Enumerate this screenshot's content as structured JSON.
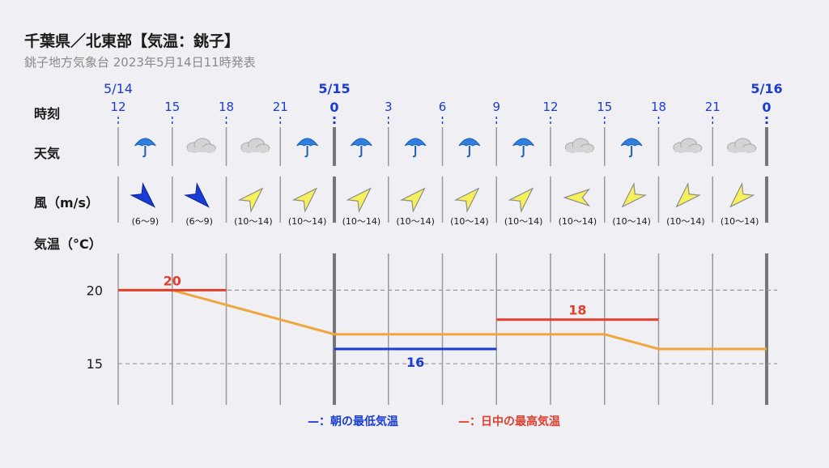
{
  "title": "千葉県／北東部【気温：銚子】",
  "subtitle": "銚子地方気象台 2023年5月14日11時発表",
  "row_labels": {
    "time": "時刻",
    "weather": "天気",
    "wind": "風（m/s）",
    "temp": "気温（°C）"
  },
  "dates": [
    "5/14",
    "5/15",
    "5/16"
  ],
  "hours": [
    "12",
    "15",
    "18",
    "21",
    "0",
    "3",
    "6",
    "9",
    "12",
    "15",
    "18",
    "21",
    "0"
  ],
  "weather": [
    "rain-umbrella-icon",
    "cloud-icon",
    "cloud-icon",
    "rain-umbrella-icon",
    "rain-umbrella-icon",
    "rain-umbrella-icon",
    "rain-umbrella-icon",
    "rain-umbrella-icon",
    "cloud-icon",
    "rain-umbrella-icon",
    "cloud-icon",
    "cloud-icon"
  ],
  "wind": [
    {
      "range": "(6〜9)",
      "dir": "NW",
      "strength": "low"
    },
    {
      "range": "(6〜9)",
      "dir": "NW",
      "strength": "low"
    },
    {
      "range": "(10〜14)",
      "dir": "SW",
      "strength": "mid"
    },
    {
      "range": "(10〜14)",
      "dir": "SW",
      "strength": "mid"
    },
    {
      "range": "(10〜14)",
      "dir": "SW",
      "strength": "mid"
    },
    {
      "range": "(10〜14)",
      "dir": "SW",
      "strength": "mid"
    },
    {
      "range": "(10〜14)",
      "dir": "SW",
      "strength": "mid"
    },
    {
      "range": "(10〜14)",
      "dir": "SW",
      "strength": "mid"
    },
    {
      "range": "(10〜14)",
      "dir": "E",
      "strength": "mid"
    },
    {
      "range": "(10〜14)",
      "dir": "NE",
      "strength": "mid"
    },
    {
      "range": "(10〜14)",
      "dir": "NE",
      "strength": "mid"
    },
    {
      "range": "(10〜14)",
      "dir": "NE",
      "strength": "mid"
    }
  ],
  "legend": {
    "morning": "—：朝の最低気温",
    "daymax": "—：日中の最高気温"
  },
  "colors": {
    "blue": "#1a3cd6",
    "red": "#e0402e",
    "orange": "#f0a63c",
    "wind_low": "#1a3cd6",
    "wind_mid": "#f6f05a"
  },
  "chart_data": {
    "type": "line",
    "x": [
      "12",
      "15",
      "18",
      "21",
      "0",
      "3",
      "6",
      "9",
      "12",
      "15",
      "18",
      "21",
      "0"
    ],
    "series": [
      {
        "values": [
          20,
          20,
          19,
          18,
          17,
          17,
          17,
          17,
          17,
          17,
          16,
          16,
          16
        ]
      }
    ],
    "max_temp": [
      {
        "day": "5/14",
        "value": 20,
        "label": "20"
      },
      {
        "day": "5/15",
        "value": 18,
        "label": "18"
      }
    ],
    "min_temp": [
      {
        "day": "5/15",
        "value": 16,
        "label": "16"
      }
    ],
    "yticks": [
      20,
      15
    ],
    "ylim": [
      12.2,
      22.5
    ],
    "grid": true
  }
}
